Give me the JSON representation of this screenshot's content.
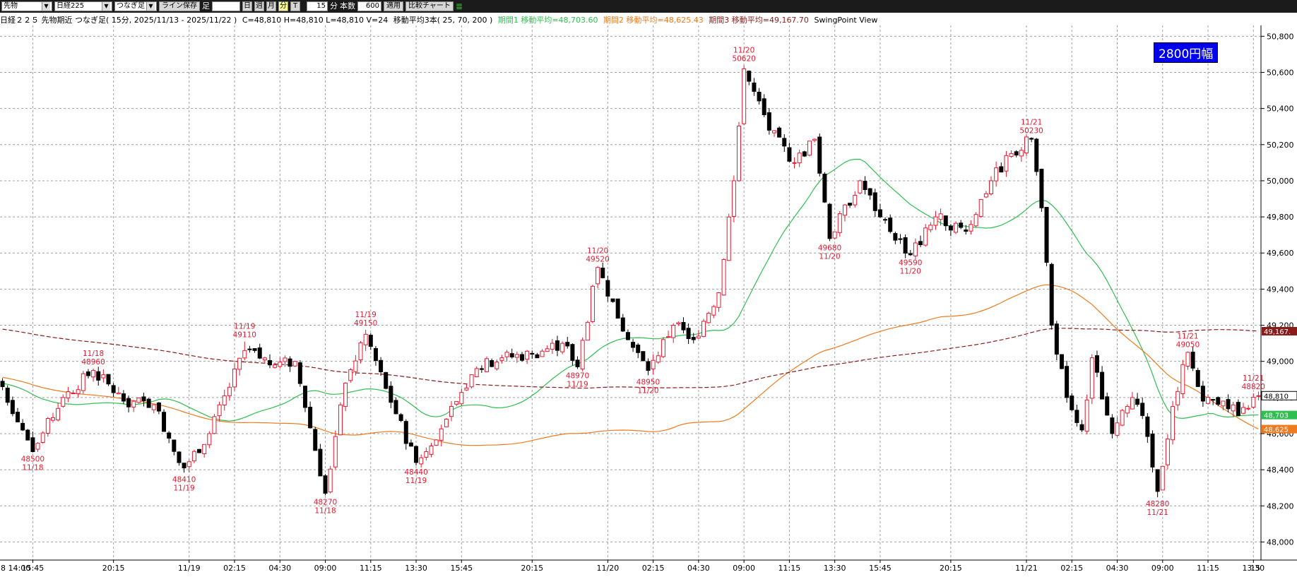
{
  "toolbar": {
    "market_select": "先物",
    "symbol_select": "日経225",
    "chain_select": "つなぎ足",
    "line_save": "ライン保存",
    "ashi_label": "足",
    "period_buttons": [
      "日",
      "週",
      "月",
      "分",
      "T"
    ],
    "minute_value": "15",
    "minute_label": "分",
    "count_label": "本数",
    "count_value": "600",
    "apply_button": "適用",
    "compare_button": "比較チャート"
  },
  "info_bar": {
    "title": "日経２２５ 先物期近 つなぎ足( 15分, 2025/11/13 - 2025/11/22 )",
    "ohlcv": "C=48,810 H=48,810 L=48,810 V=24",
    "ma_label": "移動平均3本( 25, 70, 200 )",
    "ma1": "期間1 移動平均=48,703.60",
    "ma2": "期間2 移動平均=48,625.43",
    "ma3": "期間3 移動平均=49,167.70",
    "swing": "SwingPoint View"
  },
  "badge": "2800円幅",
  "colors": {
    "up": "#e8182e",
    "down": "#000000",
    "ma25": "#2fbf4f",
    "ma70": "#f07a1e",
    "ma200": "#8b1a1a",
    "annotation": "#e8182e",
    "grid": "#a0a0a0"
  },
  "chart_data": {
    "type": "candlestick",
    "y_axis": {
      "min": 47900,
      "max": 50860,
      "ticks": [
        48000,
        48200,
        48400,
        48600,
        48800,
        49000,
        49200,
        49400,
        49600,
        49800,
        50000,
        50200,
        50400,
        50600,
        50800
      ],
      "tick_labels": [
        "48,000",
        "48,200",
        "48,400",
        "48,600",
        "48,800",
        "49,000",
        "49,200",
        "49,400",
        "49,600",
        "49,800",
        "50,000",
        "50,200",
        "50,400",
        "50,600",
        "50,800"
      ]
    },
    "x_axis": {
      "bar_count": 250,
      "ticks": [
        {
          "bar": 6,
          "label": "15:45"
        },
        {
          "bar": 22,
          "label": "20:15"
        },
        {
          "bar": 37,
          "label": "11/19"
        },
        {
          "bar": 46,
          "label": "02:15"
        },
        {
          "bar": 55,
          "label": "04:30"
        },
        {
          "bar": 64,
          "label": "09:00"
        },
        {
          "bar": 73,
          "label": "11:15"
        },
        {
          "bar": 82,
          "label": "13:30"
        },
        {
          "bar": 91,
          "label": "15:45"
        },
        {
          "bar": 105,
          "label": "20:15"
        },
        {
          "bar": 120,
          "label": "11/20"
        },
        {
          "bar": 129,
          "label": "02:15"
        },
        {
          "bar": 138,
          "label": "04:30"
        },
        {
          "bar": 147,
          "label": "09:00"
        },
        {
          "bar": 156,
          "label": "11:15"
        },
        {
          "bar": 165,
          "label": "13:30"
        },
        {
          "bar": 174,
          "label": "15:45"
        },
        {
          "bar": 188,
          "label": "20:15"
        },
        {
          "bar": 203,
          "label": "11/21"
        },
        {
          "bar": 212,
          "label": "02:15"
        },
        {
          "bar": 221,
          "label": "04:30"
        },
        {
          "bar": 230,
          "label": "09:00"
        },
        {
          "bar": 239,
          "label": "11:15"
        },
        {
          "bar": 248,
          "label": "13:30"
        }
      ],
      "edge_labels": {
        "left": "8 14:00",
        "right": "15"
      }
    },
    "price_anchors": [
      [
        0,
        48860
      ],
      [
        6,
        48500
      ],
      [
        12,
        48800
      ],
      [
        18,
        48950
      ],
      [
        24,
        48780
      ],
      [
        30,
        48760
      ],
      [
        36,
        48410
      ],
      [
        41,
        48600
      ],
      [
        48,
        49060
      ],
      [
        54,
        48980
      ],
      [
        58,
        49000
      ],
      [
        64,
        48270
      ],
      [
        68,
        48880
      ],
      [
        72,
        49150
      ],
      [
        76,
        48850
      ],
      [
        82,
        48440
      ],
      [
        88,
        48680
      ],
      [
        94,
        48960
      ],
      [
        99,
        49020
      ],
      [
        105,
        49040
      ],
      [
        111,
        49100
      ],
      [
        114,
        48970
      ],
      [
        118,
        49520
      ],
      [
        124,
        49120
      ],
      [
        128,
        48950
      ],
      [
        133,
        49200
      ],
      [
        137,
        49120
      ],
      [
        142,
        49380
      ],
      [
        145,
        50000
      ],
      [
        147,
        50620
      ],
      [
        152,
        50280
      ],
      [
        157,
        50100
      ],
      [
        161,
        50230
      ],
      [
        164,
        49680
      ],
      [
        170,
        50000
      ],
      [
        174,
        49800
      ],
      [
        180,
        49590
      ],
      [
        185,
        49800
      ],
      [
        191,
        49720
      ],
      [
        196,
        50000
      ],
      [
        200,
        50150
      ],
      [
        204,
        50230
      ],
      [
        206,
        49850
      ],
      [
        208,
        49200
      ],
      [
        211,
        48800
      ],
      [
        214,
        48620
      ],
      [
        216,
        49020
      ],
      [
        220,
        48600
      ],
      [
        224,
        48800
      ],
      [
        226,
        48700
      ],
      [
        229,
        48280
      ],
      [
        232,
        48750
      ],
      [
        235,
        49050
      ],
      [
        238,
        48780
      ],
      [
        242,
        48780
      ],
      [
        245,
        48700
      ],
      [
        247,
        48740
      ],
      [
        249,
        48810
      ]
    ],
    "moving_averages": [
      {
        "period": 25,
        "value": 48703.6
      },
      {
        "period": 70,
        "value": 48625.43
      },
      {
        "period": 200,
        "value": 49167.7
      }
    ],
    "last_close": 48810,
    "price_badges": [
      {
        "value": 49167,
        "text": "49,167.",
        "color": "#8b1a1a"
      },
      {
        "value": 48810,
        "text": "48,810",
        "color": "#000000"
      },
      {
        "value": 48703,
        "text": "48,703",
        "color": "#2fbf4f"
      },
      {
        "value": 48625,
        "text": "48,625",
        "color": "#f07a1e"
      }
    ],
    "swing_points": [
      {
        "bar": 18,
        "type": "high",
        "date": "11/18",
        "price": "48960"
      },
      {
        "bar": 6,
        "type": "low",
        "date": "11/18",
        "price": "48500"
      },
      {
        "bar": 48,
        "type": "high",
        "date": "11/19",
        "price": "49110"
      },
      {
        "bar": 36,
        "type": "low",
        "date": "11/19",
        "price": "48410"
      },
      {
        "bar": 64,
        "type": "low",
        "date": "11/18",
        "price": "48270"
      },
      {
        "bar": 72,
        "type": "high",
        "date": "11/19",
        "price": "49150"
      },
      {
        "bar": 82,
        "type": "low",
        "date": "11/19",
        "price": "48440"
      },
      {
        "bar": 114,
        "type": "low",
        "date": "11/19",
        "price": "48970"
      },
      {
        "bar": 118,
        "type": "high",
        "date": "11/20",
        "price": "49520"
      },
      {
        "bar": 128,
        "type": "low",
        "date": "11/20",
        "price": "48950"
      },
      {
        "bar": 147,
        "type": "high",
        "date": "11/20",
        "price": "50620"
      },
      {
        "bar": 164,
        "type": "low",
        "date": "11/20",
        "price": "49680"
      },
      {
        "bar": 180,
        "type": "low",
        "date": "11/20",
        "price": "49590"
      },
      {
        "bar": 204,
        "type": "high",
        "date": "11/21",
        "price": "50230"
      },
      {
        "bar": 235,
        "type": "high",
        "date": "11/21",
        "price": "49050"
      },
      {
        "bar": 229,
        "type": "low",
        "date": "11/21",
        "price": "48280"
      },
      {
        "bar": 248,
        "type": "high",
        "date": "11/21",
        "price": "48820"
      }
    ]
  }
}
